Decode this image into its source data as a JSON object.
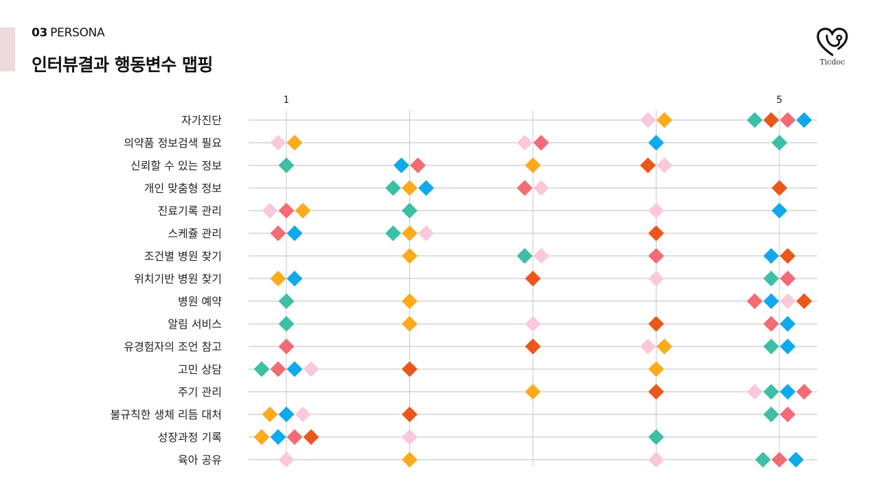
{
  "header": {
    "section_number": "03",
    "section_name": "PERSONA",
    "title": "인터뷰결과 행동변수 맵핑",
    "accent_color": "#ecdadd"
  },
  "logo": {
    "icon": "heart-stethoscope-icon",
    "text": "Ticdoc"
  },
  "chart_data": {
    "type": "scatter",
    "title": "",
    "xlabel": "",
    "ylabel": "",
    "x_range": [
      1,
      5
    ],
    "x_ticks": [
      1,
      2,
      3,
      4,
      5
    ],
    "x_tick_labels": [
      "1",
      "",
      "",
      "",
      "5"
    ],
    "grid": true,
    "marker": "diamond",
    "color_palette": [
      "#3dbfa6",
      "#f26b75",
      "#10a9ec",
      "#f9c8dc",
      "#fbab1c",
      "#e9581a"
    ],
    "rows": [
      {
        "label": "자가진단",
        "markers": [
          {
            "x": 4,
            "colors": [
              "#f9c8dc",
              "#fbab1c"
            ]
          },
          {
            "x": 5,
            "colors": [
              "#3dbfa6",
              "#e9581a",
              "#f26b75",
              "#10a9ec"
            ]
          }
        ]
      },
      {
        "label": "의약품 정보검색 필요",
        "markers": [
          {
            "x": 1,
            "colors": [
              "#f9c8dc",
              "#fbab1c"
            ]
          },
          {
            "x": 3,
            "colors": [
              "#f9c8dc",
              "#f26b75"
            ]
          },
          {
            "x": 4,
            "colors": [
              "#10a9ec"
            ]
          },
          {
            "x": 5,
            "colors": [
              "#3dbfa6"
            ]
          }
        ]
      },
      {
        "label": "신뢰할 수 있는 정보",
        "markers": [
          {
            "x": 1,
            "colors": [
              "#3dbfa6"
            ]
          },
          {
            "x": 2,
            "colors": [
              "#10a9ec",
              "#f26b75"
            ]
          },
          {
            "x": 3,
            "colors": [
              "#fbab1c"
            ]
          },
          {
            "x": 4,
            "colors": [
              "#e9581a",
              "#f9c8dc"
            ]
          }
        ]
      },
      {
        "label": "개인 맞춤형 정보",
        "markers": [
          {
            "x": 2,
            "colors": [
              "#3dbfa6",
              "#fbab1c",
              "#10a9ec"
            ]
          },
          {
            "x": 3,
            "colors": [
              "#f26b75",
              "#f9c8dc"
            ]
          },
          {
            "x": 5,
            "colors": [
              "#e9581a"
            ]
          }
        ]
      },
      {
        "label": "진료기록 관리",
        "markers": [
          {
            "x": 1,
            "colors": [
              "#f9c8dc",
              "#f26b75",
              "#fbab1c"
            ]
          },
          {
            "x": 2,
            "colors": [
              "#3dbfa6"
            ]
          },
          {
            "x": 4,
            "colors": [
              "#f9c8dc"
            ]
          },
          {
            "x": 5,
            "colors": [
              "#10a9ec"
            ]
          }
        ]
      },
      {
        "label": "스케쥴 관리",
        "markers": [
          {
            "x": 1,
            "colors": [
              "#f26b75",
              "#10a9ec"
            ]
          },
          {
            "x": 2,
            "colors": [
              "#3dbfa6",
              "#fbab1c",
              "#f9c8dc"
            ]
          },
          {
            "x": 4,
            "colors": [
              "#e9581a"
            ]
          }
        ]
      },
      {
        "label": "조건별 병원 찾기",
        "markers": [
          {
            "x": 2,
            "colors": [
              "#fbab1c"
            ]
          },
          {
            "x": 3,
            "colors": [
              "#3dbfa6",
              "#f9c8dc"
            ]
          },
          {
            "x": 4,
            "colors": [
              "#f26b75"
            ]
          },
          {
            "x": 5,
            "colors": [
              "#10a9ec",
              "#e9581a"
            ]
          }
        ]
      },
      {
        "label": "위치기반 병원 찾기",
        "markers": [
          {
            "x": 1,
            "colors": [
              "#fbab1c",
              "#10a9ec"
            ]
          },
          {
            "x": 3,
            "colors": [
              "#e9581a"
            ]
          },
          {
            "x": 4,
            "colors": [
              "#f9c8dc"
            ]
          },
          {
            "x": 5,
            "colors": [
              "#3dbfa6",
              "#f26b75"
            ]
          }
        ]
      },
      {
        "label": "병원 예약",
        "markers": [
          {
            "x": 1,
            "colors": [
              "#3dbfa6"
            ]
          },
          {
            "x": 2,
            "colors": [
              "#fbab1c"
            ]
          },
          {
            "x": 5,
            "colors": [
              "#f26b75",
              "#10a9ec",
              "#f9c8dc",
              "#e9581a"
            ]
          }
        ]
      },
      {
        "label": "알림 서비스",
        "markers": [
          {
            "x": 1,
            "colors": [
              "#3dbfa6"
            ]
          },
          {
            "x": 2,
            "colors": [
              "#fbab1c"
            ]
          },
          {
            "x": 3,
            "colors": [
              "#f9c8dc"
            ]
          },
          {
            "x": 4,
            "colors": [
              "#e9581a"
            ]
          },
          {
            "x": 5,
            "colors": [
              "#f26b75",
              "#10a9ec"
            ]
          }
        ]
      },
      {
        "label": "유경험자의 조언 참고",
        "markers": [
          {
            "x": 1,
            "colors": [
              "#f26b75"
            ]
          },
          {
            "x": 3,
            "colors": [
              "#e9581a"
            ]
          },
          {
            "x": 4,
            "colors": [
              "#f9c8dc",
              "#fbab1c"
            ]
          },
          {
            "x": 5,
            "colors": [
              "#3dbfa6",
              "#10a9ec"
            ]
          }
        ]
      },
      {
        "label": "고민 상담",
        "markers": [
          {
            "x": 1,
            "colors": [
              "#3dbfa6",
              "#f26b75",
              "#10a9ec",
              "#f9c8dc"
            ]
          },
          {
            "x": 2,
            "colors": [
              "#e9581a"
            ]
          },
          {
            "x": 4,
            "colors": [
              "#fbab1c"
            ]
          }
        ]
      },
      {
        "label": "주기 관리",
        "markers": [
          {
            "x": 3,
            "colors": [
              "#fbab1c"
            ]
          },
          {
            "x": 4,
            "colors": [
              "#e9581a"
            ]
          },
          {
            "x": 5,
            "colors": [
              "#f9c8dc",
              "#3dbfa6",
              "#10a9ec",
              "#f26b75"
            ]
          }
        ]
      },
      {
        "label": "불규칙한 생체 리듬 대처",
        "markers": [
          {
            "x": 1,
            "colors": [
              "#fbab1c",
              "#10a9ec",
              "#f9c8dc"
            ]
          },
          {
            "x": 2,
            "colors": [
              "#e9581a"
            ]
          },
          {
            "x": 5,
            "colors": [
              "#3dbfa6",
              "#f26b75"
            ]
          }
        ]
      },
      {
        "label": "성장과정 기록",
        "markers": [
          {
            "x": 1,
            "colors": [
              "#fbab1c",
              "#10a9ec",
              "#f26b75",
              "#e9581a"
            ]
          },
          {
            "x": 2,
            "colors": [
              "#f9c8dc"
            ]
          },
          {
            "x": 4,
            "colors": [
              "#3dbfa6"
            ]
          }
        ]
      },
      {
        "label": "육아 공유",
        "markers": [
          {
            "x": 1,
            "colors": [
              "#f9c8dc"
            ]
          },
          {
            "x": 2,
            "colors": [
              "#fbab1c"
            ]
          },
          {
            "x": 4,
            "colors": [
              "#f9c8dc"
            ]
          },
          {
            "x": 5,
            "colors": [
              "#3dbfa6",
              "#f26b75",
              "#10a9ec"
            ]
          }
        ]
      }
    ]
  }
}
